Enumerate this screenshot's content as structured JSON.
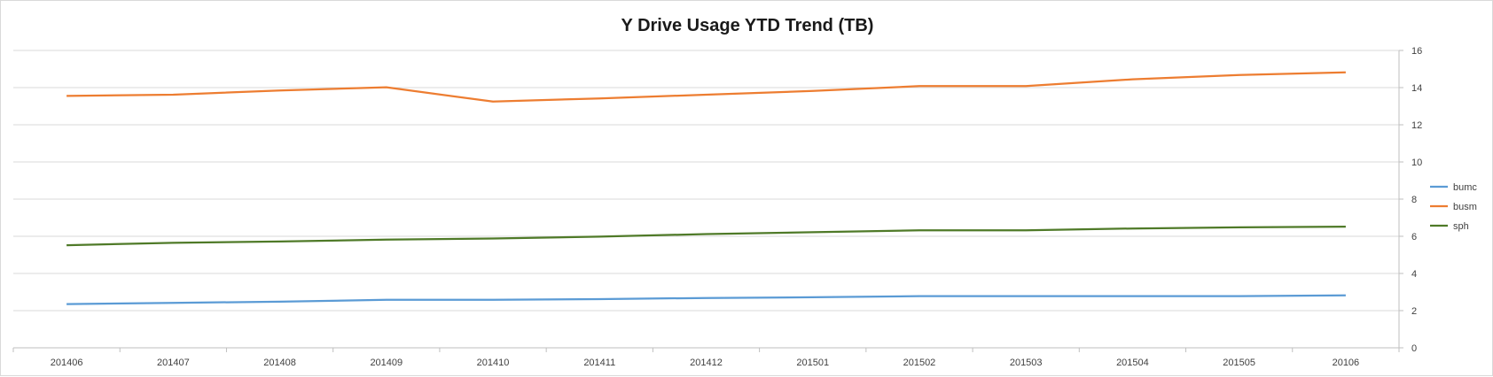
{
  "chart_data": {
    "type": "line",
    "title": "Y Drive Usage YTD Trend (TB)",
    "categories": [
      "201406",
      "201407",
      "201408",
      "201409",
      "201410",
      "201411",
      "201412",
      "201501",
      "201502",
      "201503",
      "201504",
      "201505",
      "20106"
    ],
    "series": [
      {
        "name": "bumc",
        "color": "#5b9bd5",
        "values": [
          2.35,
          2.42,
          2.48,
          2.58,
          2.58,
          2.62,
          2.68,
          2.72,
          2.78,
          2.78,
          2.78,
          2.78,
          2.82
        ]
      },
      {
        "name": "busm",
        "color": "#ed7d31",
        "values": [
          13.55,
          13.62,
          13.85,
          14.02,
          13.25,
          13.42,
          13.62,
          13.82,
          14.08,
          14.08,
          14.45,
          14.68,
          14.82
        ]
      },
      {
        "name": "sph",
        "color": "#4f7a28",
        "values": [
          5.52,
          5.65,
          5.72,
          5.82,
          5.88,
          5.98,
          6.12,
          6.22,
          6.32,
          6.32,
          6.42,
          6.48,
          6.52
        ]
      }
    ],
    "xlabel": "",
    "ylabel": "",
    "ylim": [
      0,
      16
    ],
    "yticks": [
      0,
      2,
      4,
      6,
      8,
      10,
      12,
      14,
      16
    ],
    "y_axis_position": "right",
    "grid": true,
    "legend_position": "right"
  }
}
